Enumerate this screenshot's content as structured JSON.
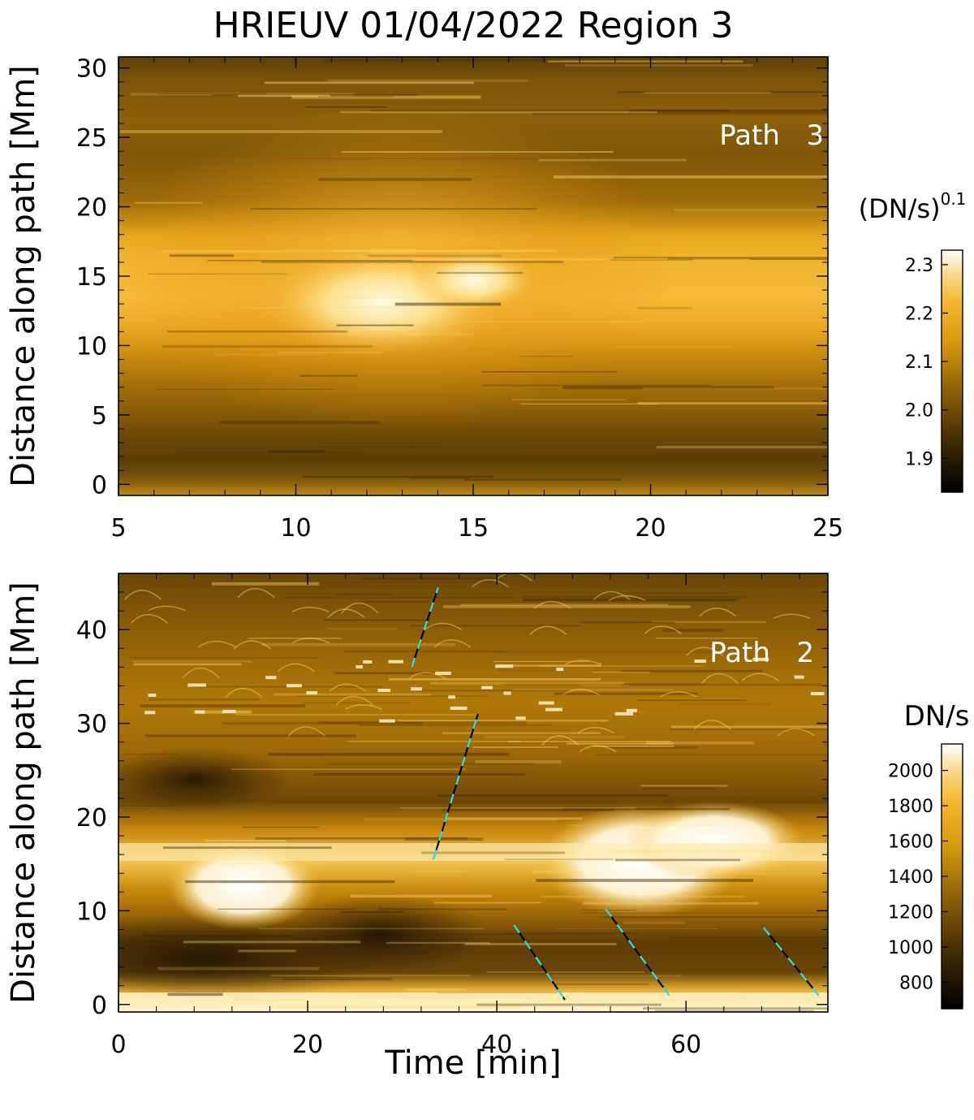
{
  "title": "HRIEUV 01/04/2022  Region 3",
  "chart_data": [
    {
      "type": "heatmap",
      "panel_label": "Path   3",
      "ylabel": "Distance along path [Mm]",
      "xlabel": "",
      "xlim": [
        5,
        25
      ],
      "ylim": [
        -0.8,
        30.8
      ],
      "x_ticks": [
        "5",
        "10",
        "15",
        "20",
        "25"
      ],
      "x_tick_values": [
        5,
        10,
        15,
        20,
        25
      ],
      "y_ticks": [
        "0",
        "5",
        "10",
        "15",
        "20",
        "25",
        "30"
      ],
      "y_tick_values": [
        0,
        5,
        10,
        15,
        20,
        25,
        30
      ],
      "colorbar": {
        "label": "(DN/s)",
        "label_exponent": "0.1",
        "range": [
          1.83,
          2.33
        ],
        "ticks": [
          "1.9",
          "2.0",
          "2.1",
          "2.2",
          "2.3"
        ],
        "tick_values": [
          1.9,
          2.0,
          2.1,
          2.2,
          2.3
        ]
      },
      "intensity_features": [
        {
          "time_min": [
            10.5,
            15.5
          ],
          "distance_mm": [
            11,
            16
          ],
          "level": "brightest"
        },
        {
          "time_min": [
            5,
            25
          ],
          "distance_mm": [
            10,
            19
          ],
          "level": "bright band"
        },
        {
          "time_min": [
            5,
            25
          ],
          "distance_mm": [
            0,
            9
          ],
          "level": "dark"
        },
        {
          "time_min": [
            5,
            25
          ],
          "distance_mm": [
            20,
            31
          ],
          "level": "dark"
        }
      ]
    },
    {
      "type": "heatmap",
      "panel_label": "Path   2",
      "ylabel": "Distance along path [Mm]",
      "xlabel": "Time [min]",
      "xlim": [
        0,
        75
      ],
      "ylim": [
        -0.8,
        46
      ],
      "x_ticks": [
        "0",
        "20",
        "40",
        "60"
      ],
      "x_tick_values": [
        0,
        20,
        40,
        60
      ],
      "y_ticks": [
        "0",
        "10",
        "20",
        "30",
        "40"
      ],
      "y_tick_values": [
        0,
        10,
        20,
        30,
        40
      ],
      "colorbar": {
        "label": "DN/s",
        "range": [
          650,
          2150
        ],
        "ticks": [
          "800",
          "1000",
          "1200",
          "1400",
          "1600",
          "1800",
          "2000"
        ],
        "tick_values": [
          800,
          1000,
          1200,
          1400,
          1600,
          1800,
          2000
        ]
      },
      "intensity_features": [
        {
          "time_min": [
            0,
            75
          ],
          "distance_mm": [
            14.5,
            19
          ],
          "level": "bright band"
        },
        {
          "time_min": [
            48,
            68
          ],
          "distance_mm": [
            9,
            19
          ],
          "level": "saturated"
        },
        {
          "time_min": [
            8,
            18
          ],
          "distance_mm": [
            9,
            15
          ],
          "level": "saturated"
        },
        {
          "time_min": [
            0,
            75
          ],
          "distance_mm": [
            0,
            2
          ],
          "level": "bright band"
        },
        {
          "time_min": [
            0,
            30
          ],
          "distance_mm": [
            3,
            9
          ],
          "level": "dark"
        }
      ],
      "tracks": [
        {
          "x": [
            31.0,
            33.8
          ],
          "y": [
            36,
            44.5
          ]
        },
        {
          "x": [
            33.3,
            38.0
          ],
          "y": [
            15.5,
            31
          ]
        },
        {
          "x": [
            41.8,
            47.2
          ],
          "y": [
            8.5,
            0.5
          ]
        },
        {
          "x": [
            51.5,
            58.2
          ],
          "y": [
            10.2,
            1
          ]
        },
        {
          "x": [
            68.2,
            74.0
          ],
          "y": [
            8.2,
            1
          ]
        }
      ]
    }
  ]
}
